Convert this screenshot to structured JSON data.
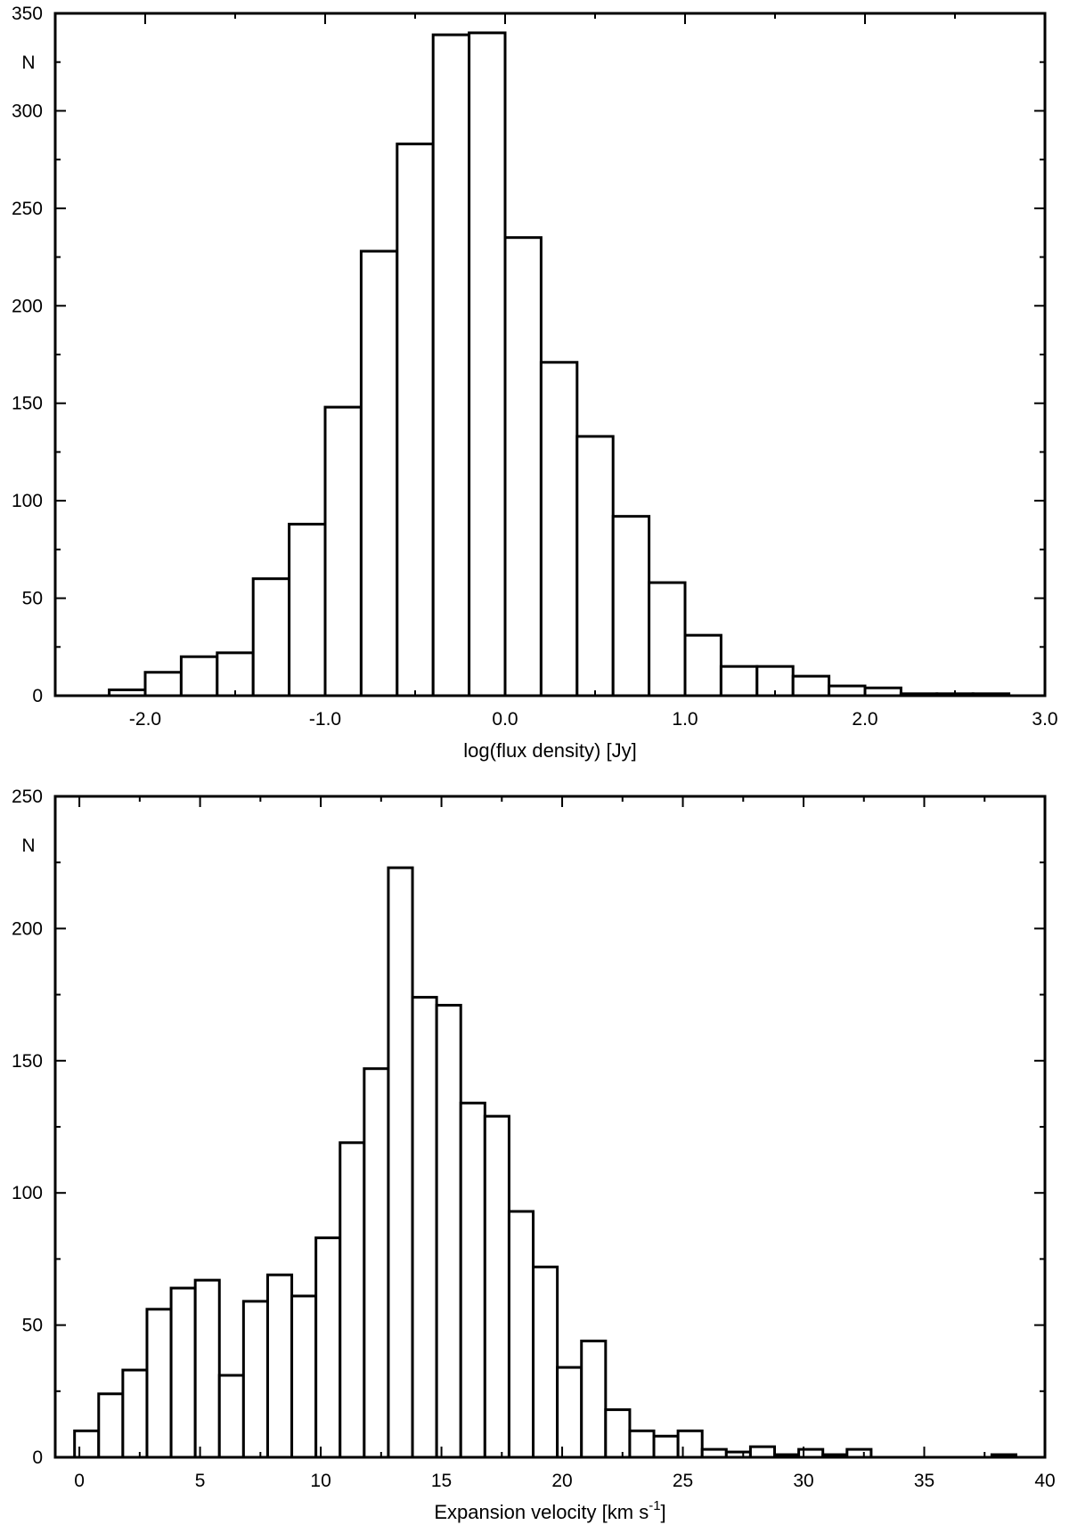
{
  "chart_data": [
    {
      "type": "bar",
      "subtype": "histogram",
      "title": "",
      "xlabel": "log(flux density) [Jy]",
      "ylabel": "N",
      "xlim": [
        -2.5,
        3.0
      ],
      "ylim": [
        0,
        350
      ],
      "bin_width": 0.2,
      "x_ticks": [
        -2.0,
        -1.0,
        0.0,
        1.0,
        2.0,
        3.0
      ],
      "x_tick_labels": [
        "-2.0",
        "-1.0",
        "0.0",
        "1.0",
        "2.0",
        "3.0"
      ],
      "y_ticks": [
        0,
        50,
        100,
        150,
        200,
        250,
        300,
        350
      ],
      "y_tick_labels": [
        "0",
        "50",
        "100",
        "150",
        "200",
        "250",
        "300",
        "350"
      ],
      "bin_starts": [
        -2.2,
        -2.0,
        -1.8,
        -1.6,
        -1.4,
        -1.2,
        -1.0,
        -0.8,
        -0.6,
        -0.4,
        -0.2,
        0.0,
        0.2,
        0.4,
        0.6,
        0.8,
        1.0,
        1.2,
        1.4,
        1.6,
        1.8,
        2.0,
        2.2,
        2.4,
        2.6
      ],
      "values": [
        3,
        12,
        20,
        22,
        60,
        88,
        148,
        228,
        283,
        339,
        340,
        235,
        171,
        133,
        92,
        58,
        31,
        15,
        15,
        10,
        5,
        4,
        1,
        1,
        1
      ],
      "grid": false,
      "legend": "none"
    },
    {
      "type": "bar",
      "subtype": "histogram",
      "title": "",
      "xlabel": "Expansion velocity [km s",
      "xlabel_sup": "-1",
      "xlabel_end": "]",
      "ylabel": "N",
      "xlim": [
        -1.0,
        40.0
      ],
      "ylim": [
        0,
        250
      ],
      "bin_width": 1.0,
      "x_ticks": [
        0,
        5,
        10,
        15,
        20,
        25,
        30,
        35,
        40
      ],
      "x_tick_labels": [
        "0",
        "5",
        "10",
        "15",
        "20",
        "25",
        "30",
        "35",
        "40"
      ],
      "y_ticks": [
        0,
        50,
        100,
        150,
        200,
        250
      ],
      "y_tick_labels": [
        "0",
        "50",
        "100",
        "150",
        "200",
        "250"
      ],
      "bin_starts": [
        -0.2,
        0.8,
        1.8,
        2.8,
        3.8,
        4.8,
        5.8,
        6.8,
        7.8,
        8.8,
        9.8,
        10.8,
        11.8,
        12.8,
        13.8,
        14.8,
        15.8,
        16.8,
        17.8,
        18.8,
        19.8,
        20.8,
        21.8,
        22.8,
        23.8,
        24.8,
        25.8,
        26.8,
        27.8,
        28.8,
        29.8,
        30.8,
        31.8,
        37.8
      ],
      "values": [
        10,
        24,
        33,
        56,
        64,
        67,
        31,
        59,
        69,
        61,
        83,
        119,
        147,
        223,
        174,
        171,
        134,
        129,
        93,
        72,
        34,
        44,
        18,
        10,
        8,
        10,
        3,
        2,
        4,
        1,
        3,
        1,
        3,
        1
      ],
      "grid": false,
      "legend": "none"
    }
  ]
}
